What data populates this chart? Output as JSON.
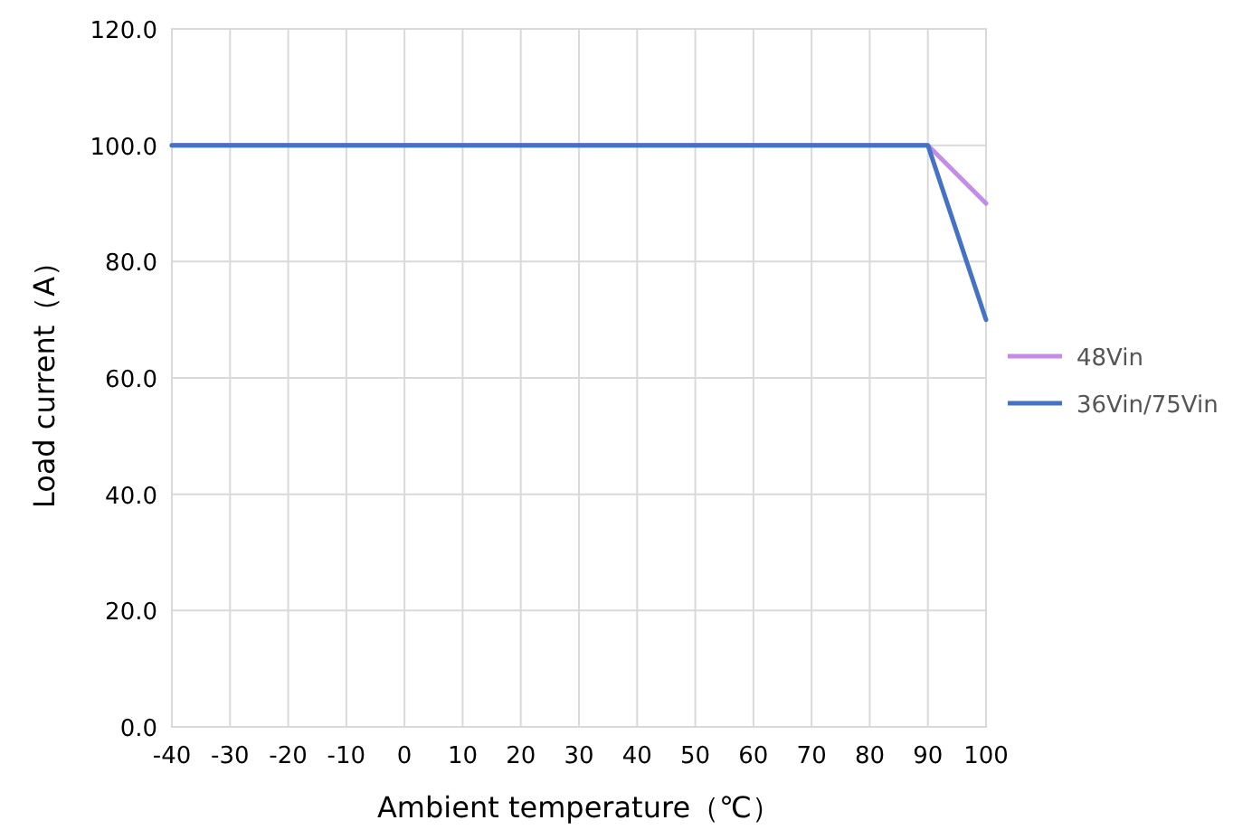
{
  "chart_data": {
    "type": "line",
    "xlabel": "Ambient temperature（℃）",
    "ylabel": "Load current（A）",
    "x": [
      -40,
      90,
      100
    ],
    "series": [
      {
        "name": "48Vin",
        "color": "#c38ce8",
        "values": [
          100,
          100,
          90
        ]
      },
      {
        "name": "36Vin/75Vin",
        "color": "#4472c4",
        "values": [
          100,
          100,
          70
        ]
      }
    ],
    "xlim": [
      -40,
      100
    ],
    "xticks": [
      -40,
      -30,
      -20,
      -10,
      0,
      10,
      20,
      30,
      40,
      50,
      60,
      70,
      80,
      90,
      100
    ],
    "ylim": [
      0,
      120
    ],
    "yticks": [
      {
        "value": 0,
        "label": "0.0"
      },
      {
        "value": 20,
        "label": "20.0"
      },
      {
        "value": 40,
        "label": "40.0"
      },
      {
        "value": 60,
        "label": "60.0"
      },
      {
        "value": 80,
        "label": "80.0"
      },
      {
        "value": 100,
        "label": "100.0"
      },
      {
        "value": 120,
        "label": "120.0"
      }
    ],
    "grid": true,
    "legend": "right",
    "marker": "none",
    "line_style": "solid"
  }
}
